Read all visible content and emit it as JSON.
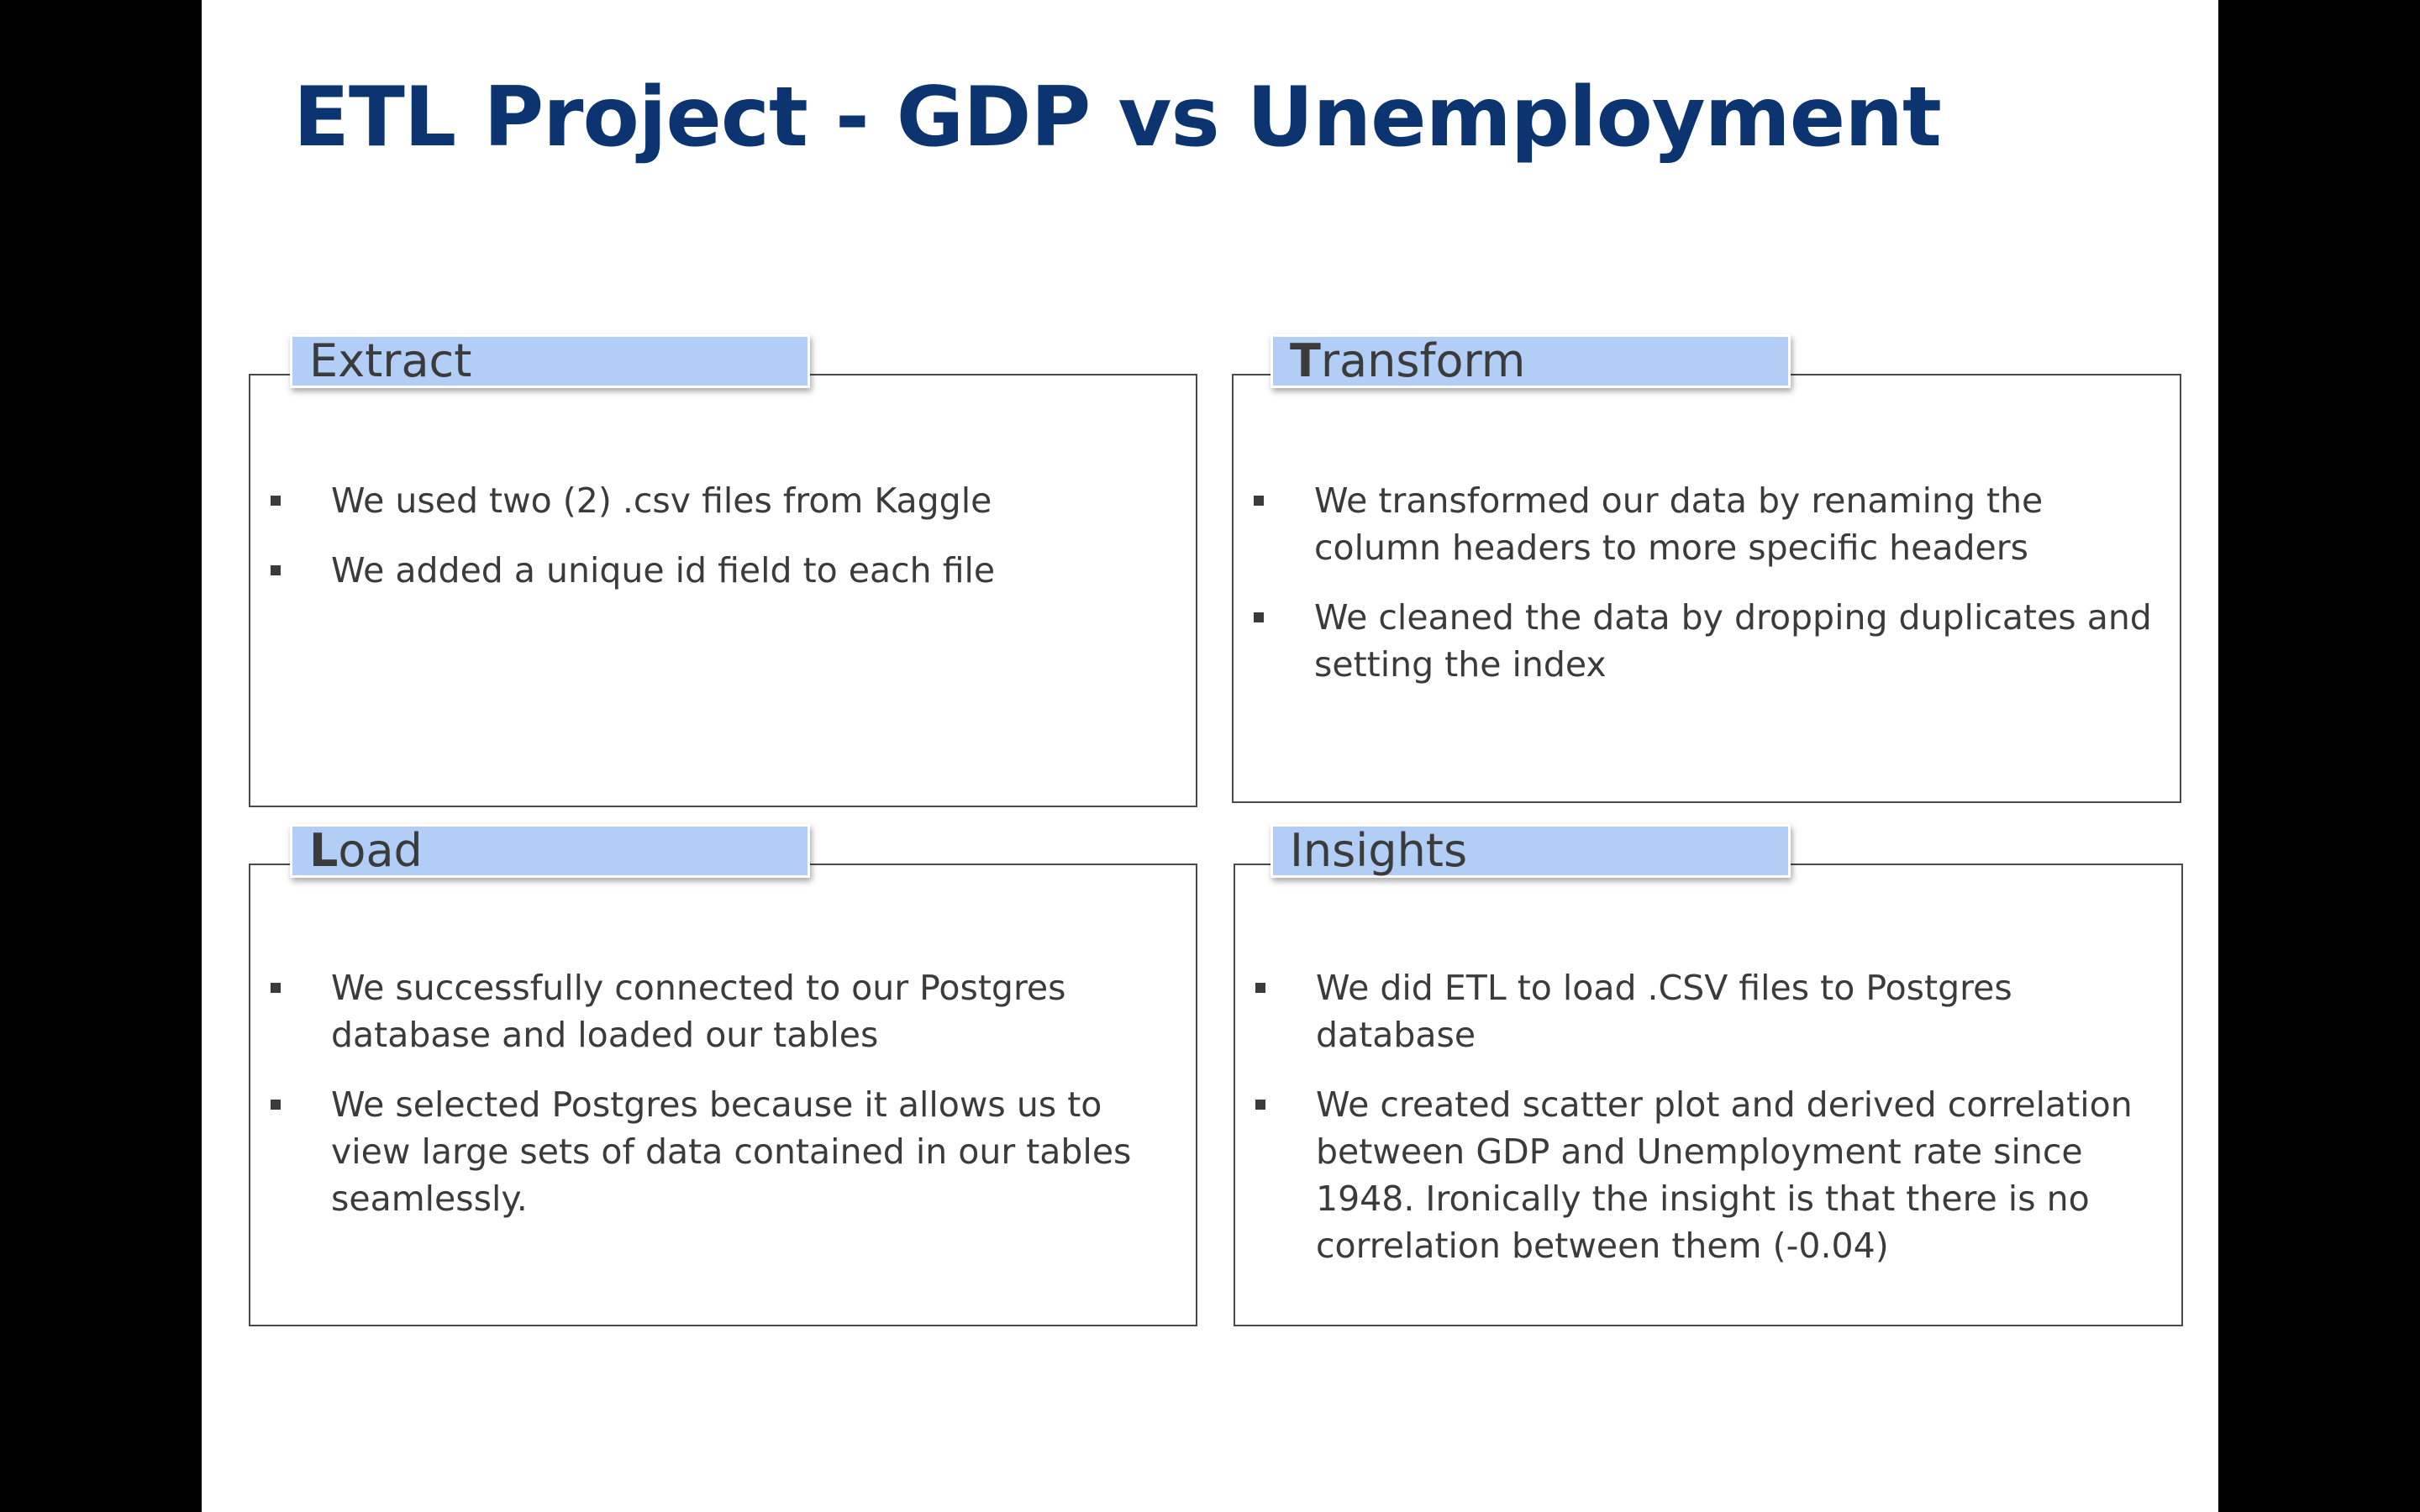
{
  "title": "ETL Project - GDP vs Unemployment",
  "sections": [
    {
      "id": "extract",
      "heading_first": "",
      "heading_rest": "Extract",
      "bullets": [
        "We used two (2) .csv files from Kaggle",
        "We added a unique id field to each file"
      ]
    },
    {
      "id": "transform",
      "heading_first": "T",
      "heading_rest": "ransform",
      "bullets": [
        "We transformed our data by renaming the column headers to more specific headers",
        "We cleaned the data by dropping duplicates and setting the index"
      ]
    },
    {
      "id": "load",
      "heading_first": "L",
      "heading_rest": "oad",
      "bullets": [
        "We successfully connected to our Postgres database and loaded our tables",
        "We selected Postgres because it allows us to view large sets of data contained in our tables seamlessly."
      ]
    },
    {
      "id": "insights",
      "heading_first": "",
      "heading_rest": "Insights",
      "bullets": [
        "We did ETL to load .CSV files to Postgres database",
        "We created scatter plot and derived correlation between GDP and Unemployment rate since 1948. Ironically the insight is that there is no correlation between them (-0.04)"
      ]
    }
  ]
}
